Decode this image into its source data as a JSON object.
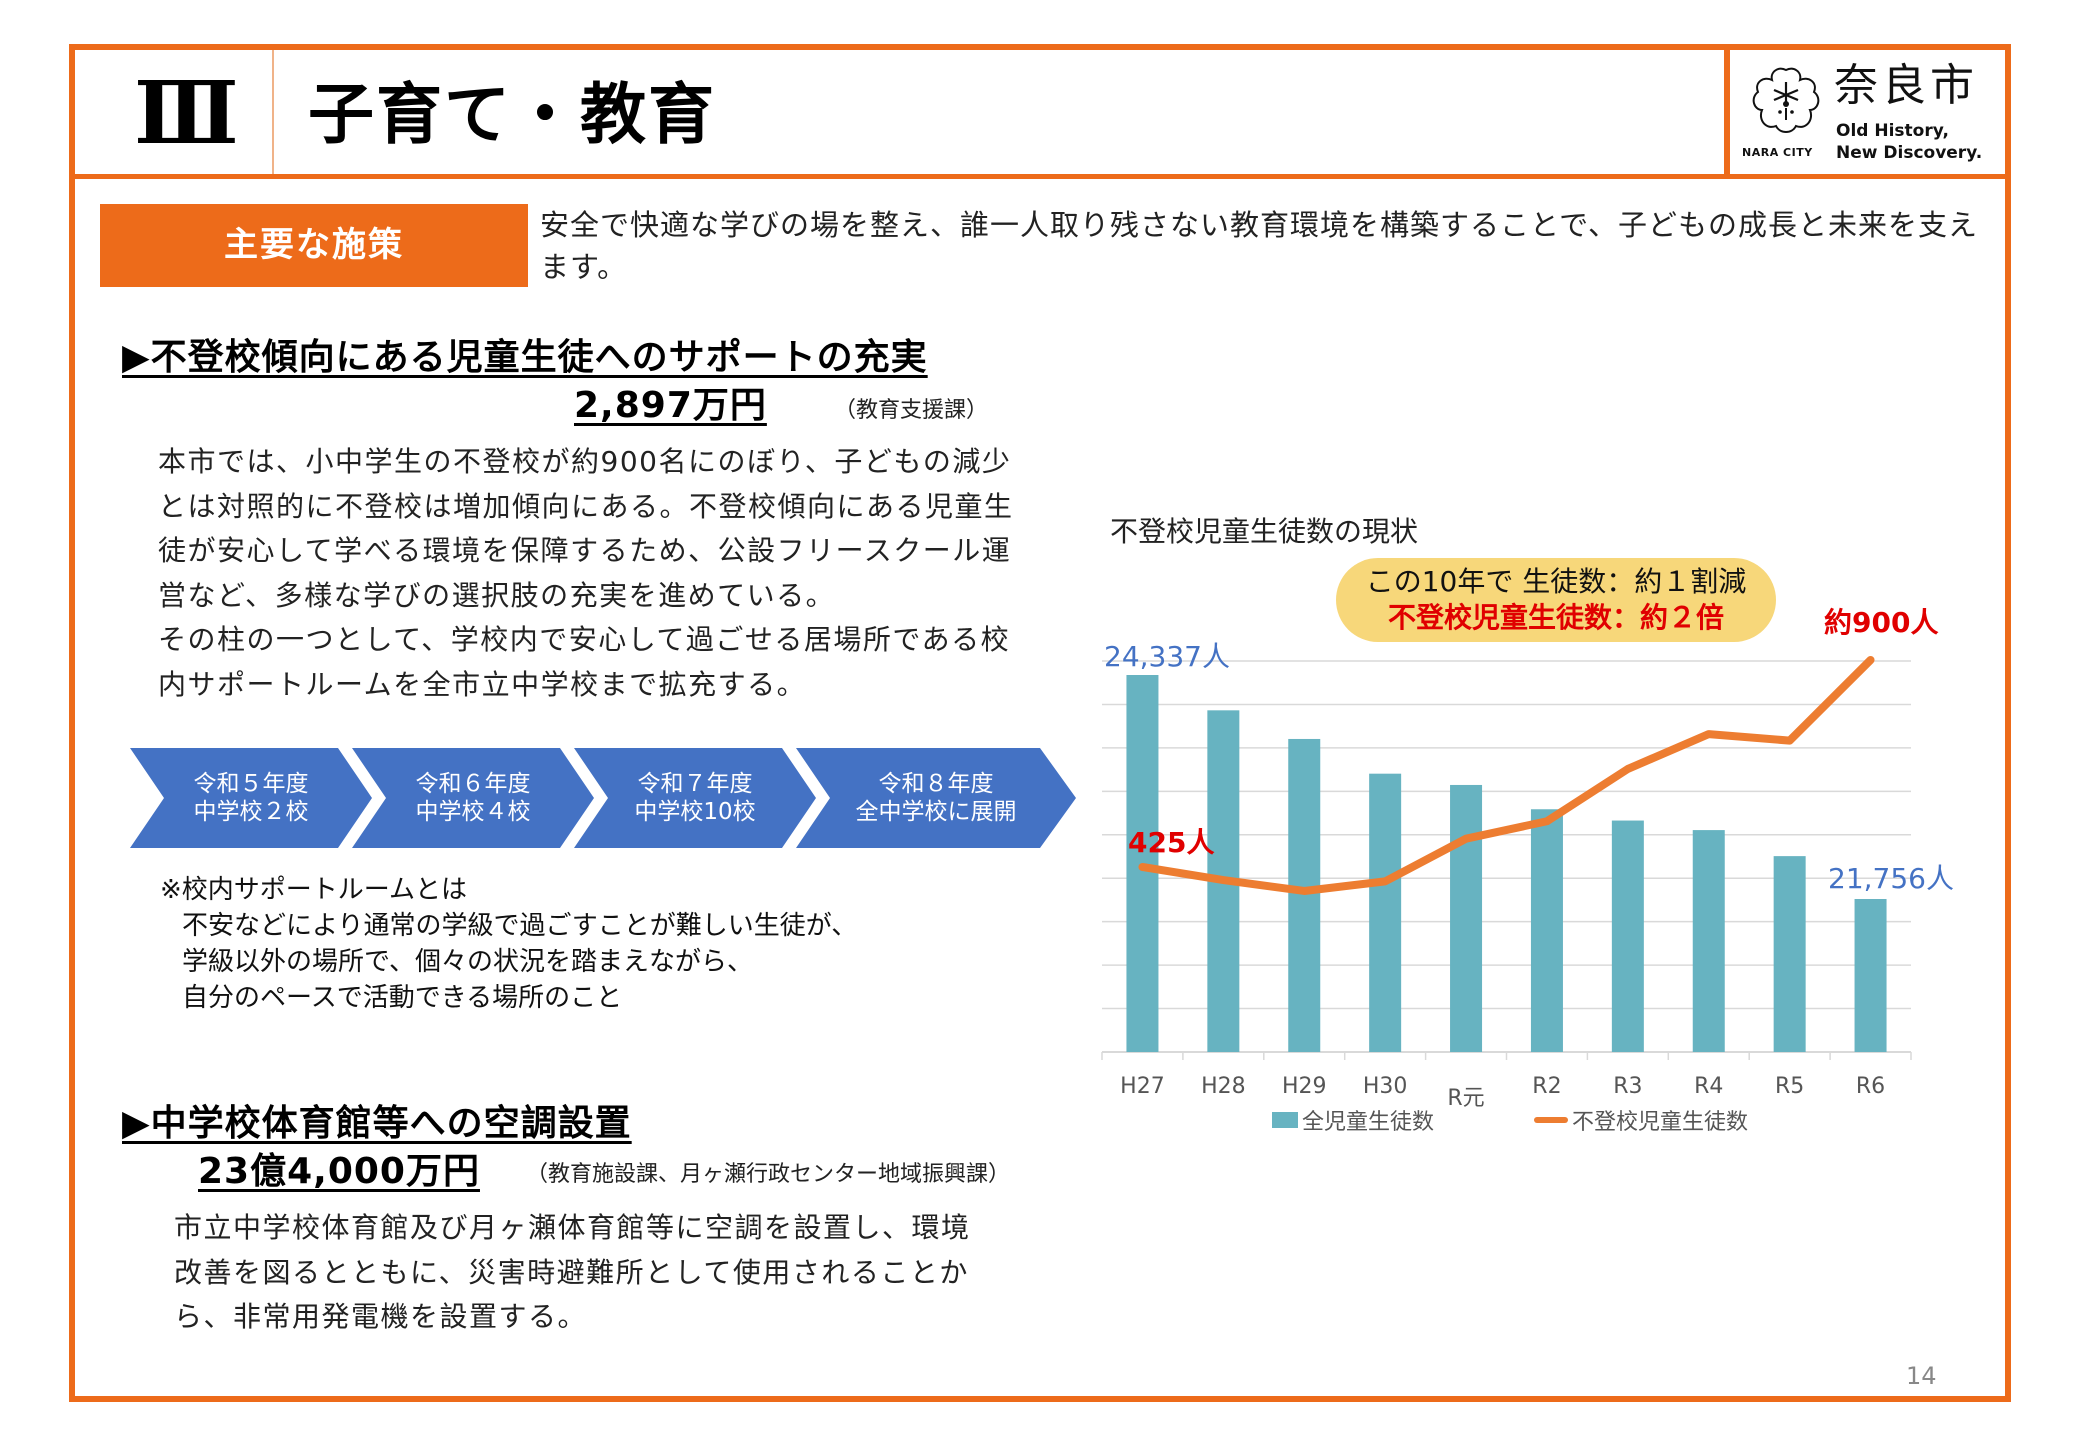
{
  "header": {
    "section_numeral": "Ⅲ",
    "title": "子育て・教育",
    "logo": {
      "kanji": "奈良市",
      "tagline_line1": "Old History,",
      "tagline_line2": "New Discovery.",
      "city_label": "NARA CITY"
    }
  },
  "policy": {
    "label": "主要な施策",
    "text": "安全で快適な学びの場を整え、誰一人取り残さない教育環境を構築することで、子どもの成長と未来を支えます。"
  },
  "section1": {
    "heading": "▶不登校傾向にある児童生徒へのサポートの充実",
    "amount": "2,897万円",
    "department": "（教育支援課）",
    "body": "本市では、小中学生の不登校が約900名にのぼり、子どもの減少とは対照的に不登校は増加傾向にある。不登校傾向にある児童生徒が安心して学べる環境を保障するため、公設フリースクール運営など、多様な学びの選択肢の充実を進めている。\nその柱の一つとして、学校内で安心して過ごせる居場所である校内サポートルームを全市立中学校まで拡充する。",
    "flow": [
      {
        "label": "令和５年度\n中学校２校"
      },
      {
        "label": "令和６年度\n中学校４校"
      },
      {
        "label": "令和７年度\n中学校10校"
      },
      {
        "label": "令和８年度\n全中学校に展開"
      }
    ],
    "note": {
      "title": "※校内サポートルームとは",
      "line1": "不安などにより通常の学級で過ごすことが難しい生徒が、",
      "line2": "学級以外の場所で、個々の状況を踏まえながら、",
      "line3": "自分のペースで活動できる場所のこと"
    }
  },
  "section2": {
    "heading": "▶中学校体育館等への空調設置",
    "amount": "23億4,000万円",
    "department": "（教育施設課、月ヶ瀬行政センター地域振興課）",
    "body": "市立中学校体育館及び月ヶ瀬体育館等に空調を設置し、環境改善を図るとともに、災害時避難所として使用されることから、非常用発電機を設置する。"
  },
  "chart": {
    "title": "不登校児童生徒数の現状",
    "callout_line1": "この10年で 生徒数：約１割減",
    "callout_line2": "不登校児童生徒数：約２倍",
    "annot_first_total": "24,337人",
    "annot_last_total": "21,756人",
    "annot_first_absent": "425人",
    "annot_last_absent": "約900人",
    "legend_bar": "全児童生徒数",
    "legend_line": "不登校児童生徒数",
    "colors": {
      "bar": "#67B3C1",
      "line": "#ED7D31",
      "grid": "#D9D9D9",
      "blue_label": "#4472C4",
      "red_label": "#E00000"
    }
  },
  "chart_data": {
    "type": "bar",
    "title": "不登校児童生徒数の現状",
    "categories": [
      "H27",
      "H28",
      "H29",
      "H30",
      "R元",
      "R2",
      "R3",
      "R4",
      "R5",
      "R6"
    ],
    "series": [
      {
        "name": "全児童生徒数",
        "type": "bar",
        "axis": "left",
        "values": [
          24337,
          23930,
          23600,
          23200,
          23070,
          22790,
          22660,
          22550,
          22250,
          21756
        ]
      },
      {
        "name": "不登校児童生徒数",
        "type": "line",
        "axis": "right",
        "values": [
          425,
          395,
          370,
          392,
          490,
          530,
          650,
          730,
          715,
          900
        ]
      }
    ],
    "annotations": [
      "24,337人",
      "21,756人",
      "425人",
      "約900人",
      "この10年で 生徒数：約１割減",
      "不登校児童生徒数：約２倍"
    ],
    "xlabel": "",
    "ylabel": "",
    "grid": true,
    "legend_position": "bottom"
  },
  "footer": {
    "page_number": "14"
  }
}
